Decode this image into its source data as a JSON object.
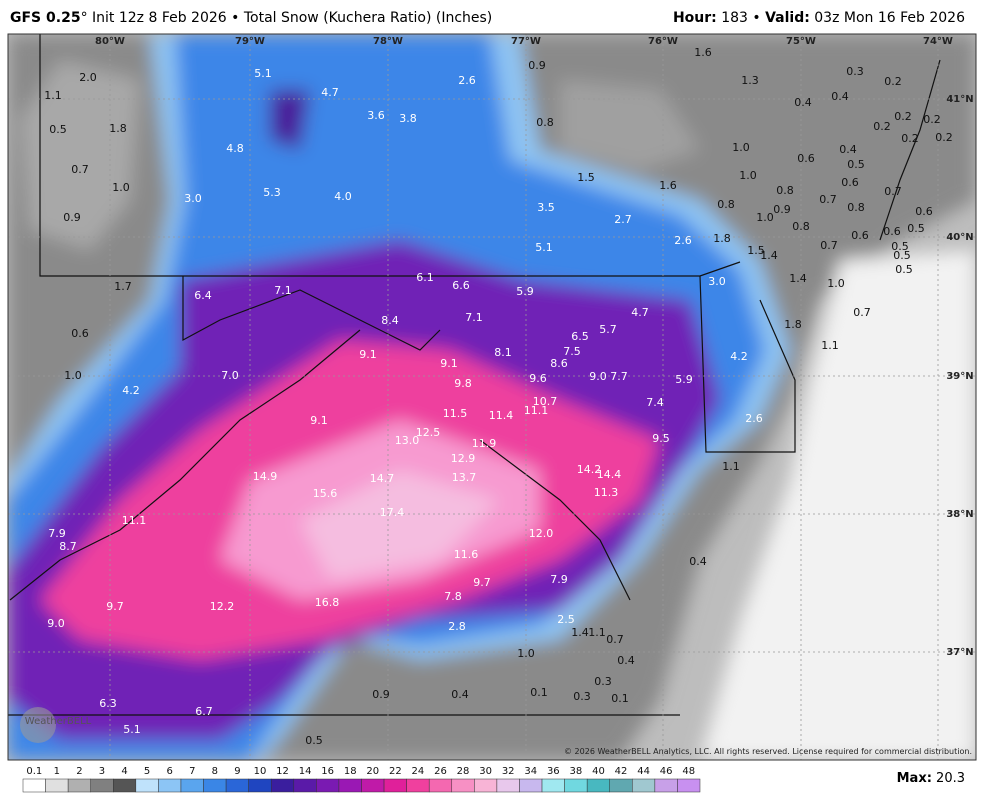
{
  "header": {
    "model": "GFS 0.25",
    "title_rest": "° Init 12z 8 Feb 2026 • Total Snow (Kuchera Ratio) (Inches)",
    "hour_label": "Hour:",
    "hour_value": " 183 • ",
    "valid_label": "Valid:",
    "valid_value": " 03z Mon 16 Feb 2026"
  },
  "map": {
    "longitudes": [
      "80°W",
      "79°W",
      "78°W",
      "77°W",
      "76°W",
      "75°W",
      "74°W"
    ],
    "latitudes": [
      "41°N",
      "40°N",
      "39°N",
      "38°N",
      "37°N"
    ],
    "labels": [
      "2.0",
      "1.1",
      "0.5",
      "1.8",
      "0.7",
      "1.0",
      "0.9",
      "5.1",
      "4.7",
      "3.6",
      "3.8",
      "4.8",
      "2.6",
      "0.9",
      "0.8",
      "1.6",
      "1.3",
      "0.3",
      "0.2",
      "0.4",
      "0.4",
      "0.2",
      "0.2",
      "0.2",
      "0.2",
      "0.2",
      "0.4",
      "0.5",
      "1.0",
      "0.6",
      "1.0",
      "0.6",
      "0.7",
      "3.0",
      "5.3",
      "4.0",
      "1.5",
      "1.6",
      "0.8",
      "0.7",
      "0.8",
      "1.0",
      "0.9",
      "0.8",
      "0.6",
      "3.5",
      "2.7",
      "0.8",
      "0.6",
      "0.6",
      "0.5",
      "2.6",
      "1.8",
      "5.1",
      "0.7",
      "0.5",
      "1.5",
      "1.4",
      "0.5",
      "0.5",
      "6.1",
      "6.6",
      "1.7",
      "6.4",
      "7.1",
      "5.9",
      "3.0",
      "1.4",
      "1.0",
      "0.6",
      "8.4",
      "7.1",
      "4.7",
      "5.7",
      "6.5",
      "1.8",
      "0.7",
      "9.1",
      "8.1",
      "7.5",
      "8.6",
      "4.2",
      "1.1",
      "1.0",
      "7.0",
      "9.1",
      "9.8",
      "9.6",
      "9.0",
      "7.7",
      "5.9",
      "4.2",
      "10.7",
      "7.4",
      "11.5",
      "11.4",
      "11.1",
      "9.1",
      "2.6",
      "13.0",
      "12.5",
      "11.9",
      "9.5",
      "12.9",
      "13.7",
      "14.2",
      "14.4",
      "1.1",
      "14.9",
      "14.7",
      "11.3",
      "15.6",
      "17.4",
      "11.1",
      "7.9",
      "8.7",
      "12.0",
      "11.6",
      "0.4",
      "9.7",
      "7.9",
      "7.8",
      "16.8",
      "12.2",
      "9.7",
      "9.0",
      "2.5",
      "2.8",
      "1.4",
      "1.1",
      "0.7",
      "1.0",
      "0.4",
      "0.3",
      "0.9",
      "0.4",
      "0.1",
      "0.3",
      "0.1",
      "6.3",
      "6.7",
      "5.1",
      "0.5"
    ],
    "logo": "WeatherBELL",
    "copyright": "© 2026 WeatherBELL Analytics, LLC. All rights reserved. License required for commercial distribution."
  },
  "legend": {
    "labels": [
      "0.1",
      "1",
      "2",
      "3",
      "4",
      "5",
      "6",
      "7",
      "8",
      "9",
      "10",
      "12",
      "14",
      "16",
      "18",
      "20",
      "22",
      "24",
      "26",
      "28",
      "30",
      "32",
      "34",
      "36",
      "38",
      "40",
      "42",
      "44",
      "46",
      "48"
    ]
  },
  "footer": {
    "max_label": "Max:",
    "max_value": " 20.3"
  }
}
